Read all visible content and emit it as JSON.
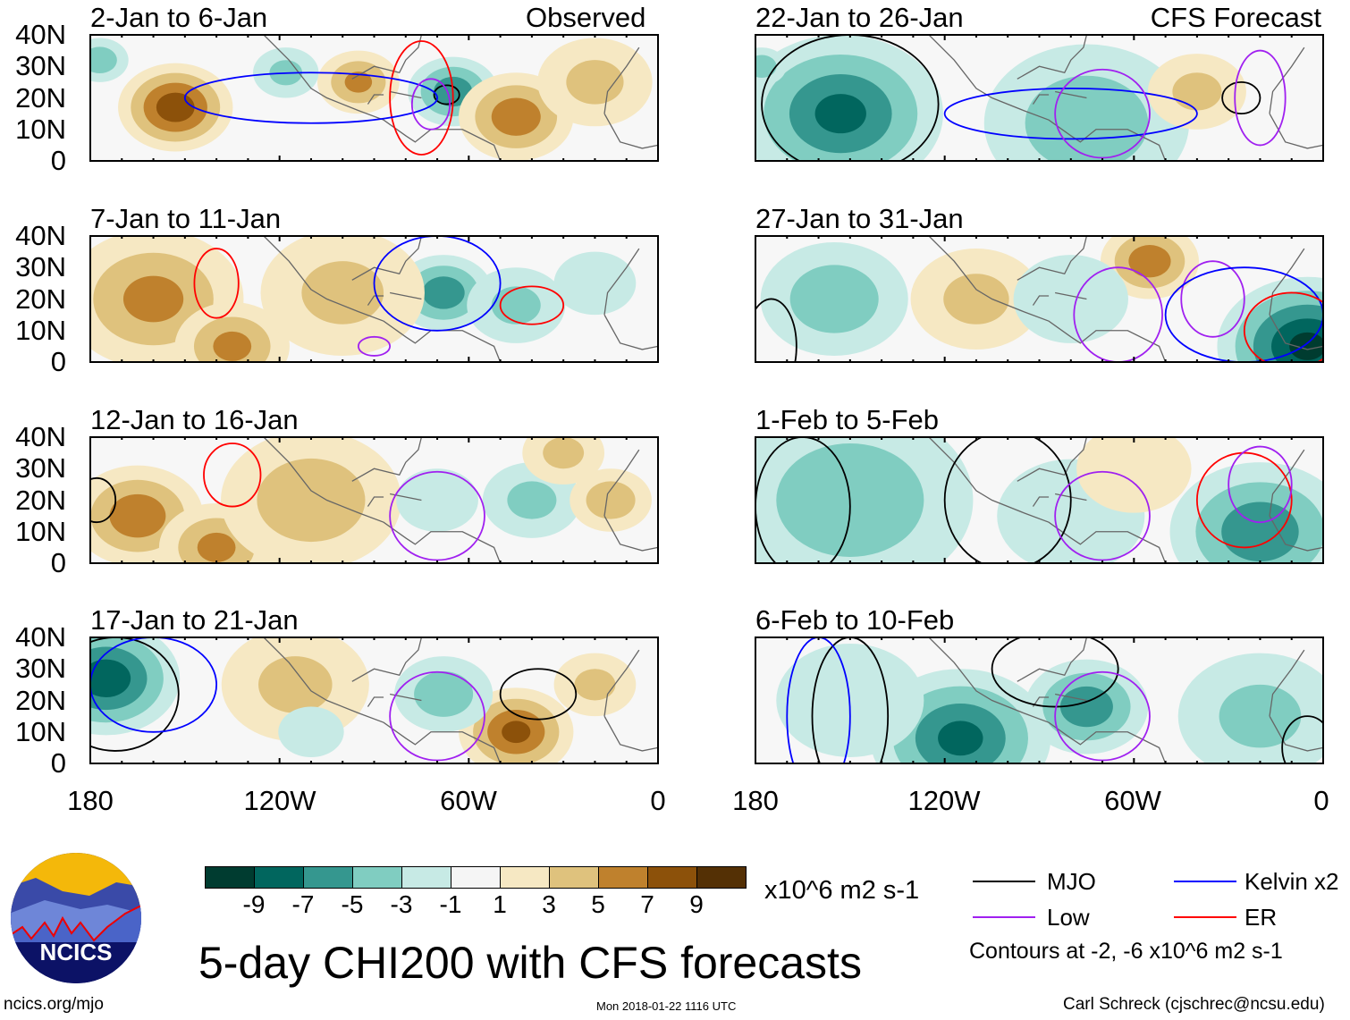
{
  "title": "5-day CHI200 with CFS forecasts",
  "units": "x10^6 m2 s-1",
  "site": "ncics.org/mjo",
  "timestamp": "Mon 2018-01-22 1116 UTC",
  "author": "Carl Schreck (cjschrec@ncsu.edu)",
  "logo_text": "NCICS",
  "column_labels": {
    "observed": "Observed",
    "forecast": "CFS Forecast"
  },
  "lat_labels": [
    "40N",
    "30N",
    "20N",
    "10N",
    "0"
  ],
  "lon_labels": [
    "180",
    "120W",
    "60W",
    "0"
  ],
  "colorbar": {
    "labels": [
      "-9",
      "-7",
      "-5",
      "-3",
      "-1",
      "1",
      "3",
      "5",
      "7",
      "9"
    ],
    "colors": [
      "#003c30",
      "#01665e",
      "#35978f",
      "#80cdc1",
      "#c7eae5",
      "#f5f5f5",
      "#f6e8c3",
      "#dfc27d",
      "#bf812d",
      "#8c510a",
      "#543005"
    ]
  },
  "legend": {
    "items": [
      {
        "label": "MJO",
        "color": "#000000"
      },
      {
        "label": "Kelvin x2",
        "color": "#0000ff"
      },
      {
        "label": "Low",
        "color": "#a020f0"
      },
      {
        "label": "ER",
        "color": "#ff0000"
      }
    ],
    "note": "Contours at -2, -6 x10^6 m2 s-1"
  },
  "chart_data": {
    "type": "heatmap",
    "variable": "CHI200 anomaly",
    "lon_range": [
      -180,
      0
    ],
    "lat_range": [
      0,
      40
    ],
    "panels": [
      {
        "title": "2-Jan to 6-Jan",
        "kind": "observed",
        "blobs": [
          [
            -153,
            17,
            8,
            14
          ],
          [
            -95,
            25,
            5,
            10
          ],
          [
            -65,
            22,
            -6,
            11
          ],
          [
            -45,
            14,
            6,
            14
          ],
          [
            -177,
            32,
            -4,
            7
          ],
          [
            -118,
            28,
            -3,
            8
          ],
          [
            -20,
            25,
            3,
            14
          ]
        ],
        "contours": [
          [
            "mjo",
            -67,
            21,
            4,
            3
          ],
          [
            "er",
            -75,
            20,
            10,
            18
          ],
          [
            "kelvin",
            -110,
            20,
            40,
            8
          ],
          [
            "low",
            -72,
            18,
            6,
            8
          ]
        ]
      },
      {
        "title": "7-Jan to 11-Jan",
        "kind": "observed",
        "blobs": [
          [
            -160,
            20,
            5,
            22
          ],
          [
            -135,
            5,
            5,
            14
          ],
          [
            -68,
            22,
            -6,
            12
          ],
          [
            -45,
            18,
            -3,
            12
          ],
          [
            -100,
            22,
            3,
            20
          ],
          [
            -20,
            25,
            -2,
            10
          ]
        ],
        "contours": [
          [
            "er",
            -140,
            25,
            7,
            11
          ],
          [
            "er",
            -40,
            18,
            10,
            6
          ],
          [
            "kelvin",
            -70,
            25,
            20,
            15
          ],
          [
            "low",
            -90,
            5,
            5,
            3
          ]
        ]
      },
      {
        "title": "12-Jan to 16-Jan",
        "kind": "observed",
        "blobs": [
          [
            -165,
            15,
            6,
            16
          ],
          [
            -140,
            5,
            5,
            14
          ],
          [
            -110,
            20,
            4,
            22
          ],
          [
            -40,
            20,
            -3,
            12
          ],
          [
            -15,
            20,
            4,
            10
          ],
          [
            -70,
            20,
            -2,
            10
          ],
          [
            -30,
            35,
            3,
            10
          ]
        ],
        "contours": [
          [
            "er",
            -135,
            28,
            9,
            10
          ],
          [
            "mjo",
            -178,
            20,
            6,
            7
          ],
          [
            "low",
            -70,
            15,
            15,
            14
          ]
        ]
      },
      {
        "title": "17-Jan to 21-Jan",
        "kind": "observed",
        "blobs": [
          [
            -175,
            27,
            -8,
            18
          ],
          [
            -115,
            25,
            3,
            18
          ],
          [
            -45,
            10,
            7,
            14
          ],
          [
            -20,
            25,
            3,
            10
          ],
          [
            -68,
            22,
            -4,
            12
          ],
          [
            -110,
            10,
            -2,
            8
          ]
        ],
        "contours": [
          [
            "mjo",
            -172,
            22,
            20,
            18
          ],
          [
            "kelvin",
            -160,
            25,
            20,
            15
          ],
          [
            "mjo",
            -38,
            22,
            12,
            8
          ],
          [
            "low",
            -70,
            15,
            15,
            14
          ]
        ]
      },
      {
        "title": "22-Jan to 26-Jan",
        "kind": "forecast",
        "blobs": [
          [
            -153,
            15,
            -7,
            25
          ],
          [
            -75,
            12,
            -4,
            25
          ],
          [
            -40,
            22,
            3,
            12
          ],
          [
            -178,
            30,
            -4,
            6
          ]
        ],
        "contours": [
          [
            "mjo",
            -150,
            18,
            28,
            22
          ],
          [
            "mjo",
            -26,
            20,
            6,
            5
          ],
          [
            "kelvin",
            -80,
            15,
            40,
            8
          ],
          [
            "low",
            -70,
            15,
            15,
            14
          ],
          [
            "low",
            -20,
            20,
            8,
            15
          ]
        ]
      },
      {
        "title": "27-Jan to 31-Jan",
        "kind": "forecast",
        "blobs": [
          [
            -155,
            20,
            -4,
            18
          ],
          [
            -55,
            32,
            6,
            12
          ],
          [
            -110,
            20,
            3,
            16
          ],
          [
            -5,
            5,
            -9,
            22
          ],
          [
            -80,
            20,
            -2,
            14
          ]
        ],
        "contours": [
          [
            "mjo",
            -175,
            5,
            8,
            15
          ],
          [
            "low",
            -65,
            15,
            14,
            15
          ],
          [
            "low",
            -35,
            20,
            10,
            12
          ],
          [
            "kelvin",
            -25,
            15,
            25,
            15
          ],
          [
            "er",
            -10,
            10,
            15,
            12
          ]
        ]
      },
      {
        "title": "1-Feb to 5-Feb",
        "kind": "forecast",
        "blobs": [
          [
            -150,
            20,
            -4,
            30
          ],
          [
            -20,
            10,
            -6,
            22
          ],
          [
            -80,
            15,
            -2,
            18
          ],
          [
            -60,
            30,
            2,
            14
          ]
        ],
        "contours": [
          [
            "mjo",
            -165,
            18,
            15,
            22
          ],
          [
            "mjo",
            -100,
            20,
            20,
            22
          ],
          [
            "low",
            -70,
            15,
            15,
            14
          ],
          [
            "er",
            -25,
            20,
            15,
            15
          ],
          [
            "low",
            -20,
            25,
            10,
            12
          ]
        ]
      },
      {
        "title": "6-Feb to 10-Feb",
        "kind": "forecast",
        "blobs": [
          [
            -115,
            8,
            -7,
            22
          ],
          [
            -75,
            18,
            -6,
            15
          ],
          [
            -150,
            20,
            -2,
            18
          ],
          [
            -20,
            15,
            -3,
            20
          ]
        ],
        "contours": [
          [
            "mjo",
            -150,
            15,
            12,
            25
          ],
          [
            "kelvin",
            -160,
            15,
            10,
            25
          ],
          [
            "mjo",
            -85,
            30,
            20,
            12
          ],
          [
            "low",
            -70,
            15,
            15,
            14
          ],
          [
            "mjo",
            -5,
            5,
            8,
            10
          ]
        ]
      }
    ]
  }
}
